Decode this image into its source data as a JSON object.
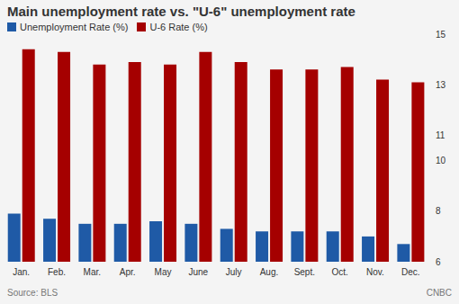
{
  "chart_data": {
    "type": "bar",
    "title": "Main unemployment rate vs. \"U-6\" unemployment rate",
    "categories": [
      "Jan.",
      "Feb.",
      "Mar.",
      "Apr.",
      "May",
      "June",
      "July",
      "Aug.",
      "Sept.",
      "Oct.",
      "Nov.",
      "Dec."
    ],
    "series": [
      {
        "name": "Unemployment Rate (%)",
        "color": "#1f5aa6",
        "values": [
          7.9,
          7.7,
          7.5,
          7.5,
          7.6,
          7.5,
          7.3,
          7.2,
          7.2,
          7.2,
          7.0,
          6.7
        ]
      },
      {
        "name": "U-6 Rate (%)",
        "color": "#a50000",
        "values": [
          14.4,
          14.3,
          13.8,
          13.9,
          13.8,
          14.3,
          13.9,
          13.6,
          13.6,
          13.7,
          13.2,
          13.1
        ]
      }
    ],
    "ylim": [
      6,
      15
    ],
    "yticks": [
      6,
      8,
      10,
      11,
      13,
      15
    ],
    "grid": false,
    "legend": "top-left",
    "annotations": [
      "Source: BLS",
      "CNBC"
    ]
  }
}
